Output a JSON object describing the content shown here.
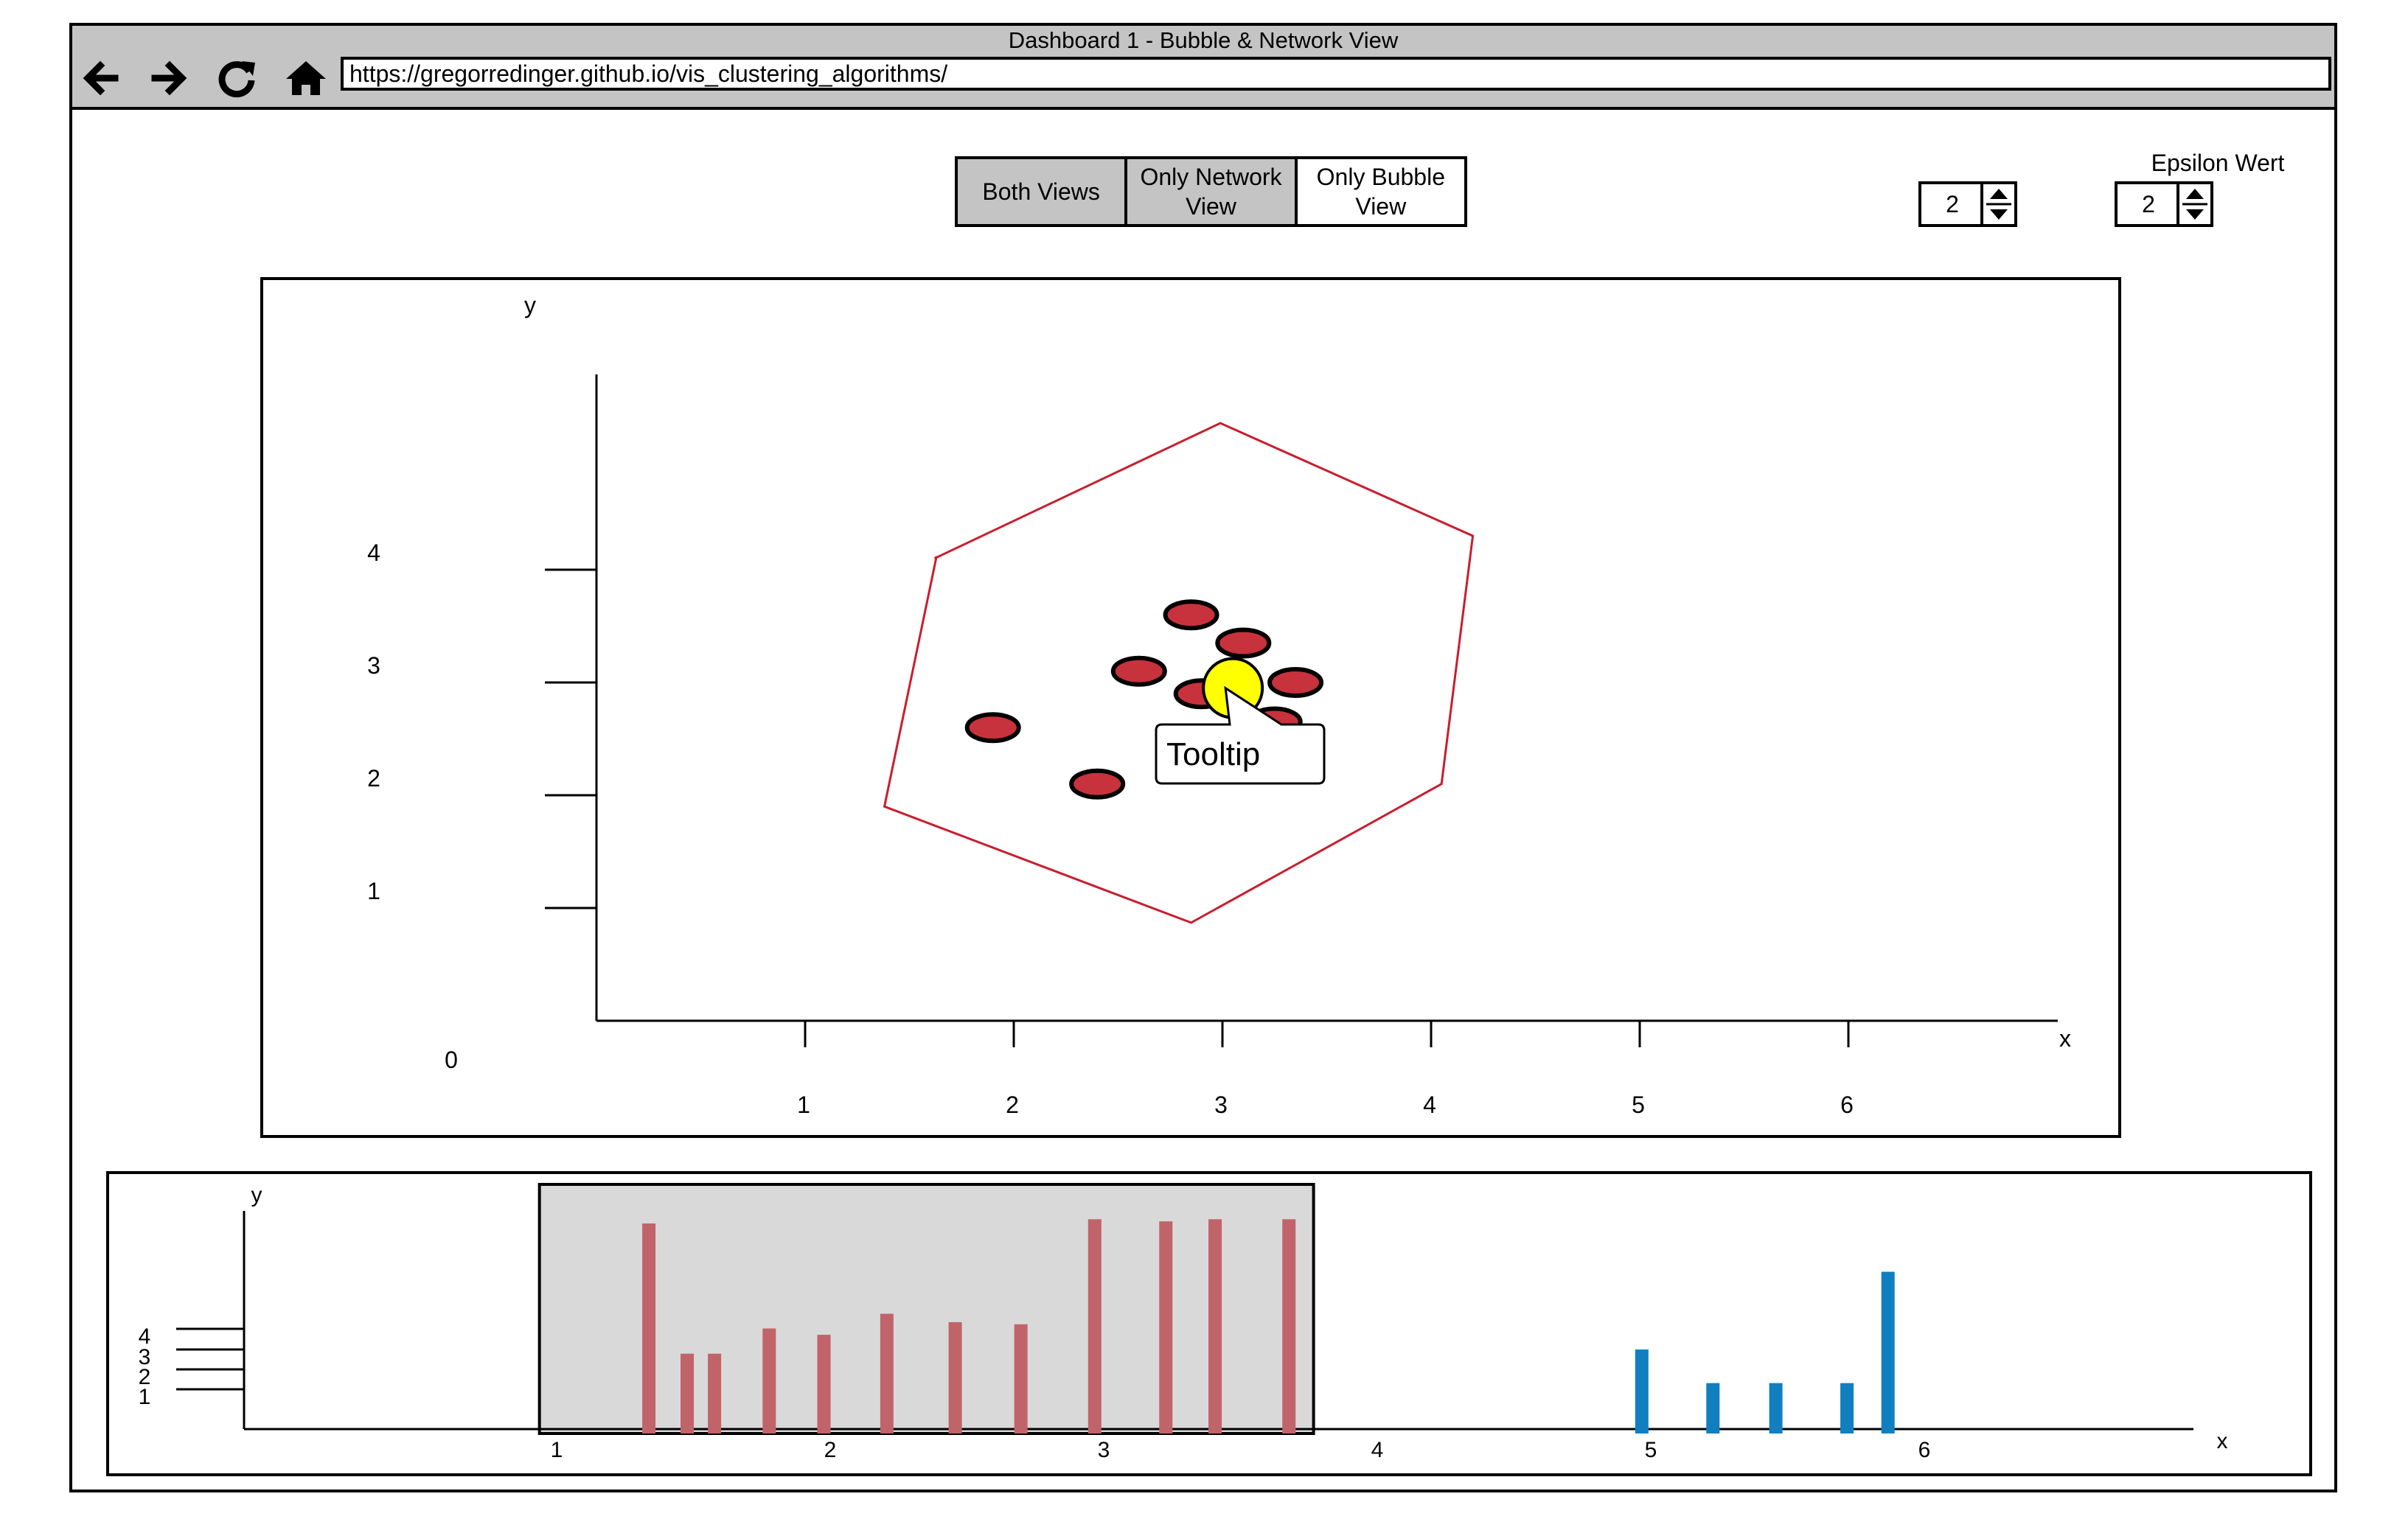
{
  "window": {
    "title": "Dashboard 1 - Bubble & Network View"
  },
  "browser": {
    "url": "https://gregorredinger.github.io/vis_clustering_algorithms/",
    "icons": [
      "back-arrow-icon",
      "forward-arrow-icon",
      "reload-icon",
      "home-icon"
    ]
  },
  "view_toggle": {
    "options": [
      {
        "label": "Both Views",
        "state": "selected"
      },
      {
        "label": "Only Network View",
        "state": "selected"
      },
      {
        "label": "Only Bubble View",
        "state": "unselected"
      }
    ]
  },
  "controls": {
    "spinner_1": {
      "value": "2"
    },
    "epsilon": {
      "label": "Epsilon Wert",
      "value": "2"
    }
  },
  "colors": {
    "cluster": "#c8323c",
    "highlight": "#ffff00",
    "hull": "#c81e2d",
    "bar_red": "#c0646a",
    "bar_blue": "#117fbf",
    "selection": "#d9d9d9"
  },
  "chart_data": [
    {
      "type": "scatter",
      "xlabel": "x",
      "ylabel": "y",
      "origin_label": "0",
      "xticks": [
        "1",
        "2",
        "3",
        "4",
        "5",
        "6"
      ],
      "yticks": [
        "1",
        "2",
        "3",
        "4"
      ],
      "xlim": [
        0,
        7
      ],
      "ylim": [
        0,
        5.75
      ],
      "series": [
        {
          "points": [
            [
              1.9,
              2.6
            ],
            [
              2.4,
              2.1
            ],
            [
              2.6,
              3.1
            ],
            [
              2.85,
              3.6
            ],
            [
              2.9,
              2.9
            ],
            [
              3.1,
              3.35
            ],
            [
              3.25,
              2.65
            ],
            [
              3.35,
              3.0
            ]
          ]
        }
      ],
      "highlight_point": [
        3.05,
        2.95
      ],
      "hull": [
        [
          1.62,
          4.1
        ],
        [
          2.99,
          5.3
        ],
        [
          4.2,
          4.3
        ],
        [
          4.05,
          2.1
        ],
        [
          2.85,
          0.87
        ],
        [
          1.38,
          1.9
        ]
      ],
      "tooltip": "Tooltip"
    },
    {
      "type": "bar",
      "xlabel": "x",
      "ylabel": "y",
      "xticks": [
        "1",
        "2",
        "3",
        "4",
        "5",
        "6"
      ],
      "yticks": [
        "1",
        "2",
        "3",
        "4"
      ],
      "xlim": [
        -0.38,
        6.75
      ],
      "ylim": [
        0,
        5
      ],
      "series": [
        {
          "name": "",
          "color": "red",
          "x": [
            1.1,
            1.24,
            1.34,
            1.54,
            1.74,
            1.97,
            2.22,
            2.46,
            2.73,
            2.99,
            3.17,
            3.44
          ],
          "values": [
            5.0,
            1.9,
            1.9,
            2.5,
            2.35,
            2.85,
            2.65,
            2.6,
            5.1,
            5.05,
            5.1,
            5.1
          ]
        },
        {
          "name": "",
          "color": "blue",
          "x": [
            4.73,
            4.99,
            5.22,
            5.48,
            5.63
          ],
          "values": [
            2.0,
            1.2,
            1.2,
            1.2,
            3.85
          ]
        }
      ],
      "selection_range": [
        0.7,
        3.53
      ]
    }
  ]
}
